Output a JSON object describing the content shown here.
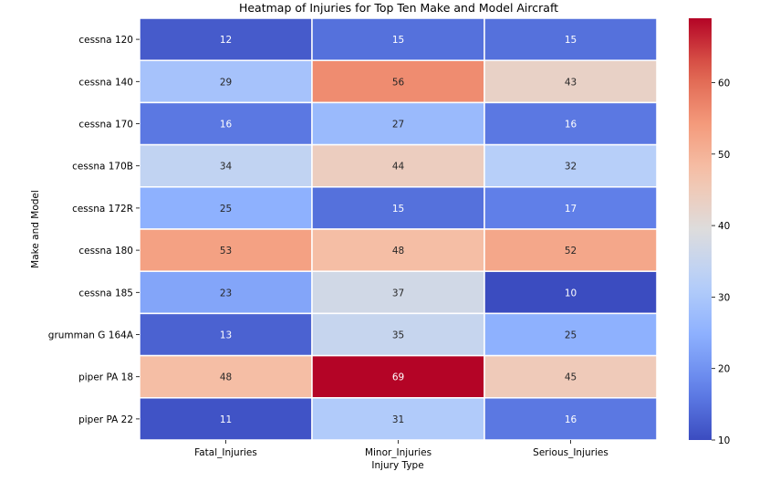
{
  "chart_data": {
    "type": "heatmap",
    "title": "Heatmap of Injuries for Top Ten Make and Model Aircraft",
    "xlabel": "Injury Type",
    "ylabel": "Make and Model",
    "columns": [
      "Fatal_Injuries",
      "Minor_Injuries",
      "Serious_Injuries"
    ],
    "rows": [
      "cessna 120",
      "cessna 140",
      "cessna 170",
      "cessna 170B",
      "cessna 172R",
      "cessna 180",
      "cessna 185",
      "grumman G 164A",
      "piper PA 18",
      "piper PA 22"
    ],
    "values": [
      [
        12,
        15,
        15
      ],
      [
        29,
        56,
        43
      ],
      [
        16,
        27,
        16
      ],
      [
        34,
        44,
        32
      ],
      [
        25,
        15,
        17
      ],
      [
        53,
        48,
        52
      ],
      [
        23,
        37,
        10
      ],
      [
        13,
        35,
        25
      ],
      [
        48,
        69,
        45
      ],
      [
        11,
        31,
        16
      ]
    ],
    "colormap": "coolwarm",
    "vmin": 10,
    "vmax": 69,
    "colorbar_ticks": [
      10,
      20,
      30,
      40,
      50,
      60
    ],
    "annotations": true
  }
}
